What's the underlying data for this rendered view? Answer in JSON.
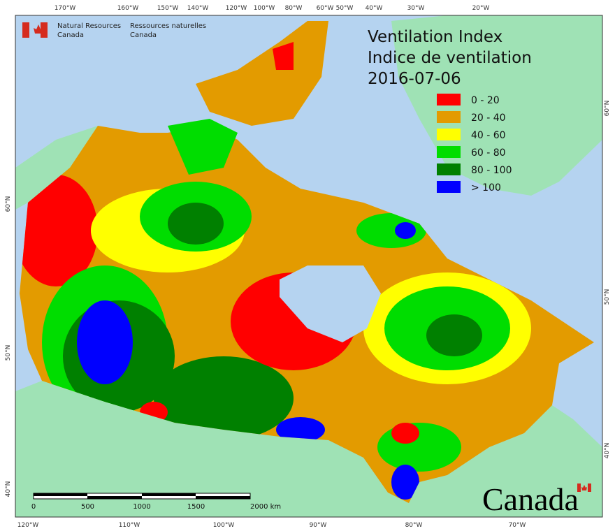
{
  "header": {
    "department_en": [
      "Natural Resources",
      "Canada"
    ],
    "department_fr": [
      "Ressources naturelles",
      "Canada"
    ]
  },
  "title": [
    "Ventilation Index",
    "Indice de ventilation",
    "2016-07-06"
  ],
  "legend": [
    {
      "label": "0 - 20",
      "color": "#ff0000"
    },
    {
      "label": "20 - 40",
      "color": "#e39b00"
    },
    {
      "label": "40 - 60",
      "color": "#ffff00"
    },
    {
      "label": "60 - 80",
      "color": "#00dd00"
    },
    {
      "label": "80 - 100",
      "color": "#008000"
    },
    {
      "label": "> 100",
      "color": "#0000ff"
    }
  ],
  "graticule": {
    "top": [
      "170°W",
      "160°W",
      "150°W",
      "140°W",
      "120°W",
      "100°W",
      "80°W",
      "60°W",
      "50°W",
      "40°W",
      "30°W",
      "20°W"
    ],
    "bottom": [
      "120°W",
      "110°W",
      "100°W",
      "90°W",
      "80°W",
      "70°W"
    ],
    "left": [
      "60°N",
      "50°N",
      "40°N"
    ],
    "right": [
      "60°N",
      "50°N",
      "40°N"
    ]
  },
  "scale_bar": {
    "labels": [
      "0",
      "500",
      "1000",
      "1500",
      "2000 km"
    ]
  },
  "wordmark": "Canada"
}
